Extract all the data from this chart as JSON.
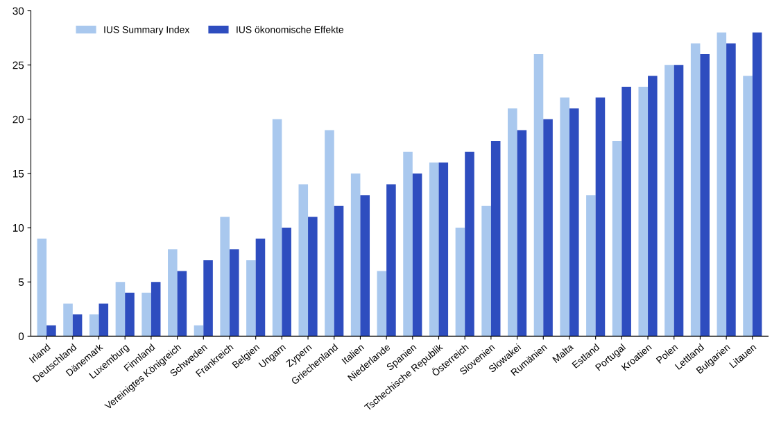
{
  "chart_data": {
    "type": "bar",
    "categories": [
      "Irland",
      "Deutschland",
      "Dänemark",
      "Luxemburg",
      "Finnland",
      "Vereinigtes Königreich",
      "Schweden",
      "Frankreich",
      "Belgien",
      "Ungarn",
      "Zypern",
      "Griechenland",
      "Italien",
      "Niederlande",
      "Spanien",
      "Tschechische Republik",
      "Österreich",
      "Slovenien",
      "Slowakei",
      "Rumänien",
      "Malta",
      "Estland",
      "Portugal",
      "Kroatien",
      "Polen",
      "Lettland",
      "Bulgarien",
      "Litauen"
    ],
    "series": [
      {
        "name": "IUS Summary Index",
        "color": "#a9c8ee",
        "values": [
          9,
          3,
          2,
          5,
          4,
          8,
          1,
          11,
          7,
          20,
          14,
          19,
          15,
          6,
          17,
          16,
          10,
          12,
          21,
          26,
          22,
          13,
          18,
          23,
          25,
          27,
          28,
          24
        ]
      },
      {
        "name": "IUS ökonomische Effekte",
        "color": "#2e4dbf",
        "values": [
          1,
          2,
          3,
          4,
          5,
          6,
          7,
          8,
          9,
          10,
          11,
          12,
          13,
          14,
          15,
          16,
          17,
          18,
          19,
          20,
          21,
          22,
          23,
          24,
          25,
          26,
          27,
          28
        ]
      }
    ],
    "ylim": [
      0,
      30
    ],
    "yticks": [
      0,
      5,
      10,
      15,
      20,
      25,
      30
    ],
    "grid": false,
    "legend": "top left"
  }
}
